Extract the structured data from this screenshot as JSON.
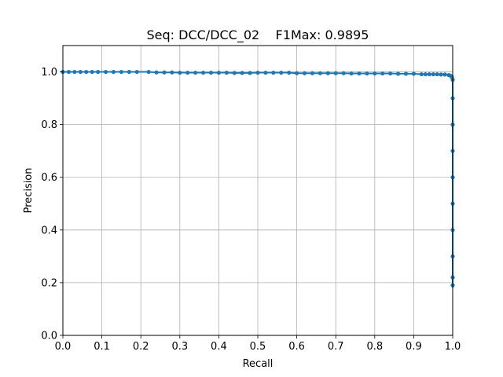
{
  "chart_data": {
    "type": "line",
    "title": "Seq: DCC/DCC_02    F1Max: 0.9895",
    "xlabel": "Recall",
    "ylabel": "Precision",
    "xlim": [
      0.0,
      1.0
    ],
    "ylim": [
      0.0,
      1.1
    ],
    "xticks": [
      "0.0",
      "0.1",
      "0.2",
      "0.3",
      "0.4",
      "0.5",
      "0.6",
      "0.7",
      "0.8",
      "0.9",
      "1.0"
    ],
    "yticks": [
      "0.0",
      "0.2",
      "0.4",
      "0.6",
      "0.8",
      "1.0"
    ],
    "grid": true,
    "series": [
      {
        "color": "#1f77b4",
        "marker": "circle",
        "x": [
          0.0,
          0.015,
          0.03,
          0.045,
          0.06,
          0.075,
          0.09,
          0.11,
          0.13,
          0.15,
          0.17,
          0.19,
          0.22,
          0.24,
          0.26,
          0.28,
          0.3,
          0.32,
          0.34,
          0.36,
          0.38,
          0.4,
          0.42,
          0.44,
          0.46,
          0.48,
          0.5,
          0.52,
          0.54,
          0.56,
          0.58,
          0.6,
          0.62,
          0.64,
          0.66,
          0.68,
          0.7,
          0.72,
          0.74,
          0.76,
          0.78,
          0.8,
          0.82,
          0.84,
          0.86,
          0.88,
          0.9,
          0.92,
          0.93,
          0.94,
          0.95,
          0.96,
          0.97,
          0.98,
          0.99,
          0.995,
          0.998,
          1.0,
          1.0,
          1.0,
          1.0,
          1.0,
          1.0,
          1.0,
          1.0,
          1.0,
          1.0
        ],
        "y": [
          1.0,
          1.0,
          1.0,
          1.0,
          1.0,
          1.0,
          1.0,
          1.0,
          1.0,
          1.0,
          1.0,
          1.0,
          1.0,
          0.998,
          0.998,
          0.998,
          0.997,
          0.997,
          0.997,
          0.997,
          0.997,
          0.997,
          0.997,
          0.996,
          0.996,
          0.996,
          0.997,
          0.997,
          0.997,
          0.997,
          0.997,
          0.995,
          0.995,
          0.995,
          0.995,
          0.995,
          0.995,
          0.995,
          0.994,
          0.994,
          0.994,
          0.994,
          0.994,
          0.994,
          0.993,
          0.993,
          0.993,
          0.991,
          0.991,
          0.991,
          0.991,
          0.991,
          0.99,
          0.99,
          0.988,
          0.985,
          0.98,
          0.97,
          0.9,
          0.8,
          0.7,
          0.6,
          0.5,
          0.4,
          0.3,
          0.22,
          0.19
        ]
      }
    ]
  }
}
